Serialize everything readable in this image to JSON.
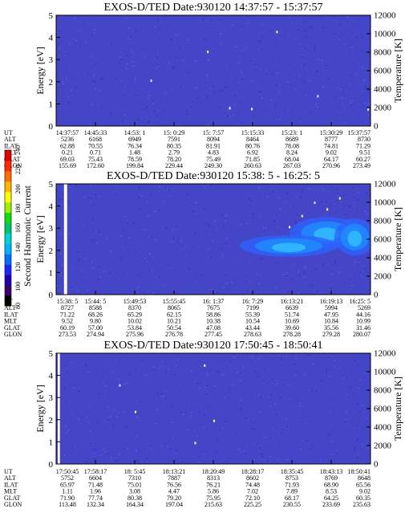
{
  "colors": {
    "background": "#4545c8",
    "speckle": [
      "#3a3ab8",
      "#5555d8",
      "#3030a8",
      "#6060e0"
    ],
    "bright": [
      "#ffffff",
      "#ffff70",
      "#e0e0ff"
    ],
    "gap": "#ffffff",
    "blob": [
      "#2c63ff",
      "#1f8cff",
      "#33b9ff"
    ]
  },
  "colorbar": {
    "label": "Second Harmonic Current",
    "ticks": [
      "80",
      "100",
      "120",
      "140",
      "160",
      "180",
      "200",
      "220",
      "240"
    ],
    "min": 80,
    "max": 240,
    "colors": [
      "#000000",
      "#3b006b",
      "#2000b4",
      "#1a28ff",
      "#0070ff",
      "#00b4ff",
      "#00d4d4",
      "#00c46e",
      "#10dc10",
      "#a0f000",
      "#ffff00",
      "#ffb400",
      "#ff7000",
      "#ff2800",
      "#e00000"
    ]
  },
  "chart_data": [
    {
      "type": "heatmap",
      "title": "EXOS-D/TED   Date:930120   14:37:57 - 15:37:57",
      "ylabel": "Energy [eV]",
      "y2label": "Temperature [K]",
      "ylim": [
        0,
        5
      ],
      "y2lim": [
        0,
        12000
      ],
      "yticks": [
        "0",
        "1",
        "2",
        "3",
        "4",
        "5"
      ],
      "y2ticks": [
        "0",
        "2000",
        "4000",
        "6000",
        "8000",
        "10000",
        "12000"
      ],
      "features": {
        "gaps": [],
        "specks": [
          [
            0.55,
            0.86
          ],
          [
            0.62,
            0.82
          ],
          [
            0.83,
            1.4
          ],
          [
            0.99,
            0.8
          ],
          [
            0.3,
            2.1
          ],
          [
            0.48,
            3.4
          ],
          [
            0.7,
            4.3
          ]
        ],
        "blobs": []
      },
      "ephemeris": {
        "labels": [
          "UT",
          "ALT",
          "ILAT",
          "MLT",
          "GLAT",
          "GLON"
        ],
        "columns": [
          [
            "14:37:57",
            "5236",
            "62.88",
            "0.21",
            "69.03",
            "155.69"
          ],
          [
            "14:45:33",
            "6168",
            "70.55",
            "0.71",
            "75.43",
            "172.60"
          ],
          [
            "14:53: 1",
            "6949",
            "76.34",
            "1.48",
            "78.59",
            "199.84"
          ],
          [
            "15: 0:29",
            "7591",
            "80.35",
            "2.79",
            "78.20",
            "229.44"
          ],
          [
            "15: 7:57",
            "8094",
            "81.91",
            "4.83",
            "75.49",
            "249.30"
          ],
          [
            "15:15:33",
            "8464",
            "80.76",
            "6.92",
            "71.85",
            "260.63"
          ],
          [
            "15:23: 1",
            "8689",
            "78.08",
            "8.24",
            "68.04",
            "267.03"
          ],
          [
            "15:30:29",
            "8777",
            "74.81",
            "9.02",
            "64.17",
            "270.96"
          ],
          [
            "15:37:57",
            "8730",
            "71.29",
            "9.51",
            "60.27",
            "273.49"
          ]
        ]
      }
    },
    {
      "type": "heatmap",
      "title": "EXOS-D/TED   Date:930120   15:38: 5 - 16:25: 5",
      "ylabel": "Energy [eV]",
      "y2label": "Temperature [K]",
      "ylim": [
        0,
        5
      ],
      "y2lim": [
        0,
        12000
      ],
      "yticks": [
        "0",
        "1",
        "2",
        "3",
        "4",
        "5"
      ],
      "y2ticks": [
        "0",
        "2000",
        "4000",
        "6000",
        "8000",
        "10000",
        "12000"
      ],
      "features": {
        "gaps": [
          [
            0.025,
            0.035
          ]
        ],
        "specks": [
          [
            0.78,
            3.6
          ],
          [
            0.82,
            4.2
          ],
          [
            0.86,
            3.9
          ],
          [
            0.9,
            4.4
          ],
          [
            0.74,
            3.1
          ]
        ],
        "blobs": [
          [
            0.86,
            2.8,
            0.09,
            0.5
          ],
          [
            0.95,
            2.6,
            0.05,
            0.6
          ],
          [
            0.74,
            2.2,
            0.12,
            0.35
          ]
        ]
      },
      "ephemeris": {
        "labels": [
          "UT",
          "ALT",
          "ILAT",
          "MLT",
          "GLAT",
          "GLON"
        ],
        "columns": [
          [
            "15:38: 5",
            "8727",
            "71.22",
            "9.52",
            "60.19",
            "273.53"
          ],
          [
            "15:44: 5",
            "8588",
            "68.26",
            "9.80",
            "57.00",
            "274.94"
          ],
          [
            "15:49:53",
            "8370",
            "65.29",
            "10.02",
            "53.84",
            "275.96"
          ],
          [
            "15:55:45",
            "8065",
            "62.15",
            "10.21",
            "50.54",
            "276.78"
          ],
          [
            "16: 1:37",
            "7675",
            "58.86",
            "10.38",
            "47.08",
            "277.45"
          ],
          [
            "16: 7:29",
            "7199",
            "55.39",
            "10.54",
            "43.44",
            "278.63"
          ],
          [
            "16:13:21",
            "6639",
            "51.74",
            "10.69",
            "39.60",
            "278.28"
          ],
          [
            "16:19:13",
            "5994",
            "47.95",
            "10.84",
            "35.56",
            "279.28"
          ],
          [
            "16:25: 5",
            "5269",
            "44.16",
            "10.99",
            "31.46",
            "280.07"
          ]
        ]
      }
    },
    {
      "type": "heatmap",
      "title": "EXOS-D/TED   Date:930120   17:50:45 - 18:50:41",
      "ylabel": "Energy [eV]",
      "y2label": "Temperature [K]",
      "ylim": [
        0,
        5
      ],
      "y2lim": [
        0,
        12000
      ],
      "yticks": [
        "0",
        "1",
        "2",
        "3",
        "4",
        "5"
      ],
      "y2ticks": [
        "0",
        "2000",
        "4000",
        "6000",
        "8000",
        "10000",
        "12000"
      ],
      "features": {
        "gaps": [
          [
            0.005,
            0.012
          ]
        ],
        "specks": [
          [
            0.2,
            3.6
          ],
          [
            0.25,
            2.4
          ],
          [
            0.47,
            4.5
          ],
          [
            0.5,
            2.0
          ],
          [
            0.44,
            1.0
          ]
        ],
        "blobs": []
      },
      "ephemeris": {
        "labels": [
          "UT",
          "ALT",
          "ILAT",
          "MLT",
          "GLAT",
          "GLON"
        ],
        "columns": [
          [
            "17:50:45",
            "5752",
            "65.97",
            "1.11",
            "71.90",
            "113.48"
          ],
          [
            "17:58:17",
            "6604",
            "71.48",
            "1.96",
            "77.74",
            "132.34"
          ],
          [
            "18: 5:45",
            "7310",
            "75.01",
            "3.08",
            "80.38",
            "164.34"
          ],
          [
            "18:13:21",
            "7887",
            "76.56",
            "4.47",
            "79.20",
            "197.04"
          ],
          [
            "18:20:49",
            "8313",
            "76.21",
            "5.86",
            "75.95",
            "215.63"
          ],
          [
            "18:28:17",
            "8602",
            "74.48",
            "7.02",
            "72.10",
            "225.25"
          ],
          [
            "18:35:45",
            "8753",
            "71.93",
            "7.89",
            "68.17",
            "230.55"
          ],
          [
            "18:43:13",
            "8769",
            "68.90",
            "8.53",
            "64.25",
            "233.69"
          ],
          [
            "18:50:41",
            "8648",
            "65.56",
            "9.02",
            "60.35",
            "235.63"
          ]
        ]
      }
    }
  ]
}
